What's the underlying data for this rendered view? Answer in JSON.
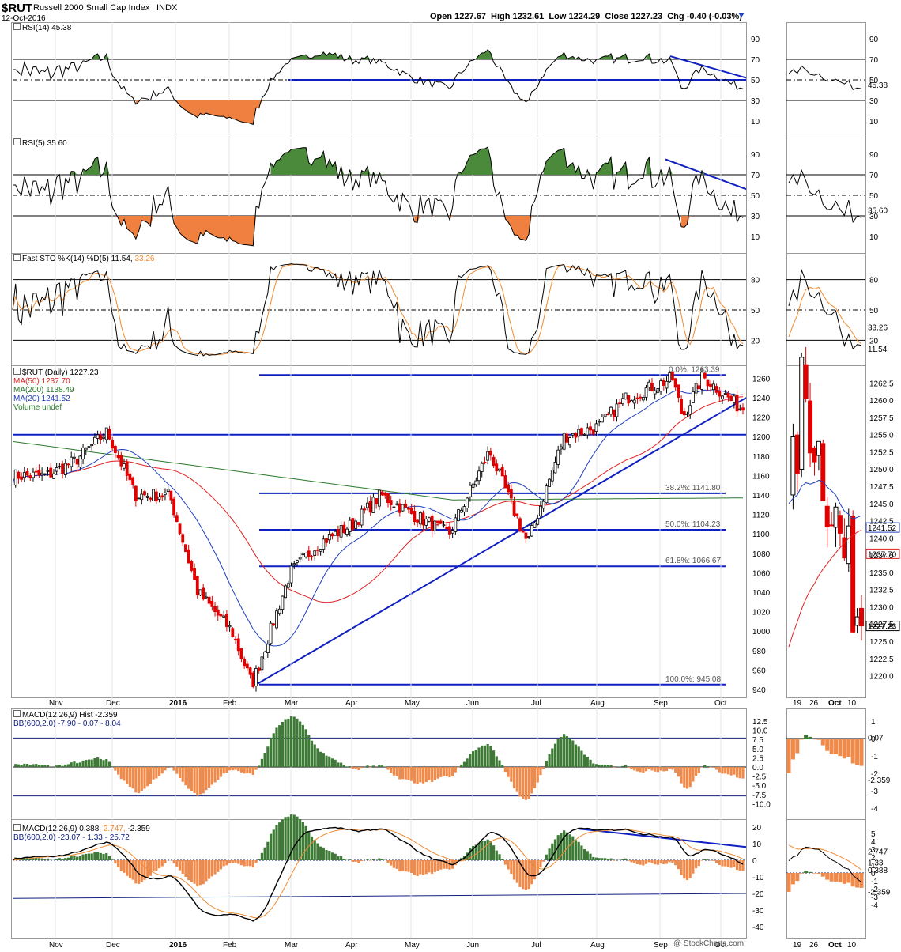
{
  "header": {
    "symbol": "$RUT",
    "name": "Russell 2000 Small Cap Index",
    "exchange": "INDX",
    "date": "12-Oct-2016",
    "ohlc": "Open 1227.67  High 1232.61  Low 1224.29  Close 1227.23  Chg -0.40 (-0.03%)",
    "watermark": "@ StockCharts.com",
    "chg_color": "#1f3fbf"
  },
  "colors": {
    "up": "#000000",
    "down": "#e00000",
    "ma50": "#e02020",
    "ma200": "#2a7a2a",
    "ma20": "#1f3fbf",
    "trend": "#1020c0",
    "overbought_fill": "#4a8a3a",
    "oversold_fill": "#f08040",
    "hist_pos": "#3d7a35",
    "hist_neg": "#f08a4b",
    "signal": "#f08a30",
    "bb": "#102080"
  },
  "panels": {
    "rsi14": {
      "label": "RSI(14) 45.38",
      "value_tag": "45.38",
      "ticks": [
        "90",
        "70",
        "50",
        "30",
        "10"
      ],
      "ticks_right": [
        "90",
        "70",
        "50",
        "30",
        "10"
      ]
    },
    "rsi5": {
      "label": "RSI(5) 35.60",
      "value_tag": "35.60",
      "ticks": [
        "90",
        "70",
        "50",
        "30",
        "10"
      ],
      "ticks_right": [
        "90",
        "70",
        "50",
        "30",
        "10"
      ]
    },
    "sto": {
      "label": "Fast STO %K(14) %D(5) 11.54,",
      "label_d": "33.26",
      "value_k": "11.54",
      "value_d": "33.26",
      "ticks": [
        "80",
        "50",
        "20"
      ],
      "ticks_right": [
        "80",
        "50",
        "20"
      ]
    },
    "price": {
      "legend": [
        "$RUT (Daily) 1227.23",
        "MA(50) 1237.70",
        "MA(200) 1138.49",
        "MA(20) 1241.52",
        "Volume undef"
      ],
      "ticks": [
        "1260",
        "1240",
        "1220",
        "1200",
        "1180",
        "1160",
        "1140",
        "1120",
        "1100",
        "1080",
        "1060",
        "1040",
        "1020",
        "1000",
        "980",
        "960",
        "940"
      ],
      "fib_labels": [
        "0.0%: 1263.39",
        "38.2%: 1141.80",
        "50.0%: 1104.23",
        "61.8%: 1066.67",
        "100.0%: 945.08"
      ],
      "zoom_ticks": [
        "1262.5",
        "1260.0",
        "1257.5",
        "1255.0",
        "1252.5",
        "1250.0",
        "1247.5",
        "1245.0",
        "1242.5",
        "1240.0",
        "1237.5",
        "1235.0",
        "1232.5",
        "1230.0",
        "1227.5",
        "1225.0",
        "1222.5",
        "1220.0"
      ],
      "zoom_tags": [
        "1241.52",
        "1237.70",
        "1227.23"
      ]
    },
    "macd_hist": {
      "label": "MACD(12,26,9) Hist -2.359",
      "bb_label": "BB(600,2.0) -7.90 - 0.07 - 8.04",
      "ticks": [
        "12.5",
        "10.0",
        "7.5",
        "5.0",
        "2.5",
        "0.0",
        "-2.5",
        "-5.0",
        "-7.5",
        "-10.0"
      ],
      "zoom_ticks": [
        "1",
        "0",
        "-1",
        "-2",
        "-3",
        "-4"
      ],
      "zoom_tags": [
        "0.07",
        "-2.359"
      ]
    },
    "macd": {
      "label": "MACD(12,26,9) 0.388,",
      "label_signal": "2.747,",
      "label_hist": "-2.359",
      "bb_label": "BB(600,2.0) -23.07 - 1.33 - 25.72",
      "ticks": [
        "20",
        "10",
        "0",
        "-10",
        "-20",
        "-30",
        "-40"
      ],
      "zoom_ticks": [
        "5",
        "4",
        "3",
        "2",
        "1",
        "0",
        "-1",
        "-2",
        "-3",
        "-4"
      ],
      "zoom_tags": [
        "2.747",
        "1.33",
        "0.388",
        "-2.359"
      ]
    }
  },
  "x_axis": {
    "months": [
      "Nov",
      "Dec",
      "2016",
      "Feb",
      "Mar",
      "Apr",
      "May",
      "Jun",
      "Jul",
      "Aug",
      "Sep",
      "Oct"
    ],
    "zoom": [
      "19",
      "26",
      "Oct",
      "10"
    ]
  },
  "chart_data": {
    "type": "candlestick",
    "title": "$RUT Russell 2000 Small Cap Index INDX",
    "series": [
      {
        "name": "$RUT (Daily)",
        "approx_path": [
          [
            "2015-10-15",
            1160
          ],
          [
            "2015-11-01",
            1160
          ],
          [
            "2015-11-15",
            1175
          ],
          [
            "2015-12-01",
            1205
          ],
          [
            "2015-12-15",
            1140
          ],
          [
            "2016-01-01",
            1140
          ],
          [
            "2016-01-15",
            1040
          ],
          [
            "2016-02-01",
            1000
          ],
          [
            "2016-02-11",
            945
          ],
          [
            "2016-03-01",
            1060
          ],
          [
            "2016-03-15",
            1090
          ],
          [
            "2016-04-01",
            1110
          ],
          [
            "2016-04-15",
            1140
          ],
          [
            "2016-05-01",
            1120
          ],
          [
            "2016-05-19",
            1100
          ],
          [
            "2016-06-08",
            1185
          ],
          [
            "2016-06-27",
            1090
          ],
          [
            "2016-07-15",
            1200
          ],
          [
            "2016-08-01",
            1210
          ],
          [
            "2016-08-15",
            1240
          ],
          [
            "2016-09-07",
            1260
          ],
          [
            "2016-09-12",
            1220
          ],
          [
            "2016-09-22",
            1262
          ],
          [
            "2016-10-12",
            1227.23
          ]
        ]
      },
      {
        "name": "MA(50)",
        "last": 1237.7
      },
      {
        "name": "MA(200)",
        "last": 1138.49
      },
      {
        "name": "MA(20)",
        "last": 1241.52
      }
    ],
    "fibonacci": [
      {
        "level": "0.0%",
        "value": 1263.39
      },
      {
        "level": "38.2%",
        "value": 1141.8
      },
      {
        "level": "50.0%",
        "value": 1104.23
      },
      {
        "level": "61.8%",
        "value": 1066.67
      },
      {
        "level": "100.0%",
        "value": 945.08
      }
    ],
    "support_level": 1202,
    "ylim": [
      940,
      1265
    ],
    "rsi14_last": 45.38,
    "rsi5_last": 35.6,
    "sto_k_last": 11.54,
    "sto_d_last": 33.26,
    "macd_last": 0.388,
    "macd_signal_last": 2.747,
    "macd_hist_last": -2.359,
    "open": 1227.67,
    "high": 1232.61,
    "low": 1224.29,
    "close": 1227.23,
    "chg": -0.4,
    "chg_pct": -0.03
  }
}
